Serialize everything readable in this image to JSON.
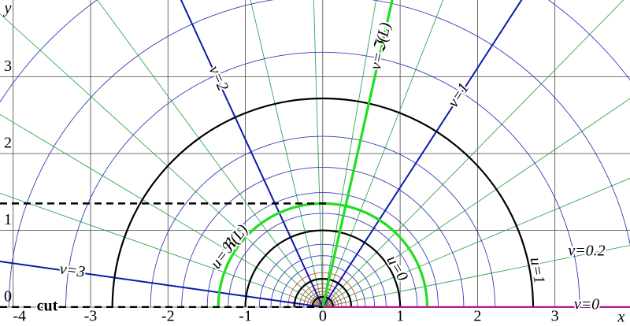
{
  "chart_data": {
    "type": "polar-grid",
    "xlabel": "x",
    "ylabel": "y",
    "xlim": [
      -4.17,
      3.97
    ],
    "ylim": [
      0,
      4.0
    ],
    "xticks": [
      -4,
      -3,
      -2,
      -1,
      0,
      1,
      2,
      3
    ],
    "yticks": [
      0,
      1,
      2,
      3
    ],
    "grid": true,
    "thin_circles": {
      "color": "#3a3ab8",
      "radii": [
        0.549,
        0.67,
        0.819,
        1.221,
        1.492,
        1.822,
        2.226,
        3.32,
        4.055,
        4.953
      ]
    },
    "small_circles": {
      "color": "#cc3333",
      "radii": [
        0.05,
        0.061,
        0.074,
        0.091,
        0.111,
        0.165,
        0.202,
        0.247,
        0.301,
        0.449
      ]
    },
    "thin_rays": {
      "color": "#2fa84f",
      "angles": [
        0.2,
        0.4,
        0.6,
        0.8,
        1.0,
        1.2,
        1.4,
        1.6,
        1.8,
        2.0,
        2.2,
        2.4,
        2.6,
        2.8,
        3.0
      ]
    },
    "circles": [
      {
        "name": "u=0",
        "r": 1,
        "color": "#000000"
      },
      {
        "name": "u=1",
        "r": 2.718,
        "color": "#000000"
      },
      {
        "r": 0.368,
        "color": "#000000"
      },
      {
        "r": 0.135,
        "color": "#000000"
      }
    ],
    "rays": [
      {
        "name": "v=1",
        "angle": 1,
        "color": "#0a1aa8"
      },
      {
        "name": "v=2",
        "angle": 2,
        "color": "#0a1aa8"
      },
      {
        "name": "v=3",
        "angle": 3,
        "color": "#0a1aa8"
      }
    ],
    "highlight": {
      "color": "#22dd22",
      "circle": {
        "name": "u=ℜ(L)",
        "r": 1.35
      },
      "ray": {
        "name": "v=ℑ(L)",
        "angle": 1.35
      }
    },
    "dashed": [
      {
        "y": 1.35,
        "x_end": 0.05
      },
      {
        "name": "cut",
        "y": 0,
        "x_end": 0
      }
    ],
    "axis_ray": {
      "name": "v=0",
      "color": "#b0208f"
    },
    "thin_ray_label": "v=0.2"
  }
}
